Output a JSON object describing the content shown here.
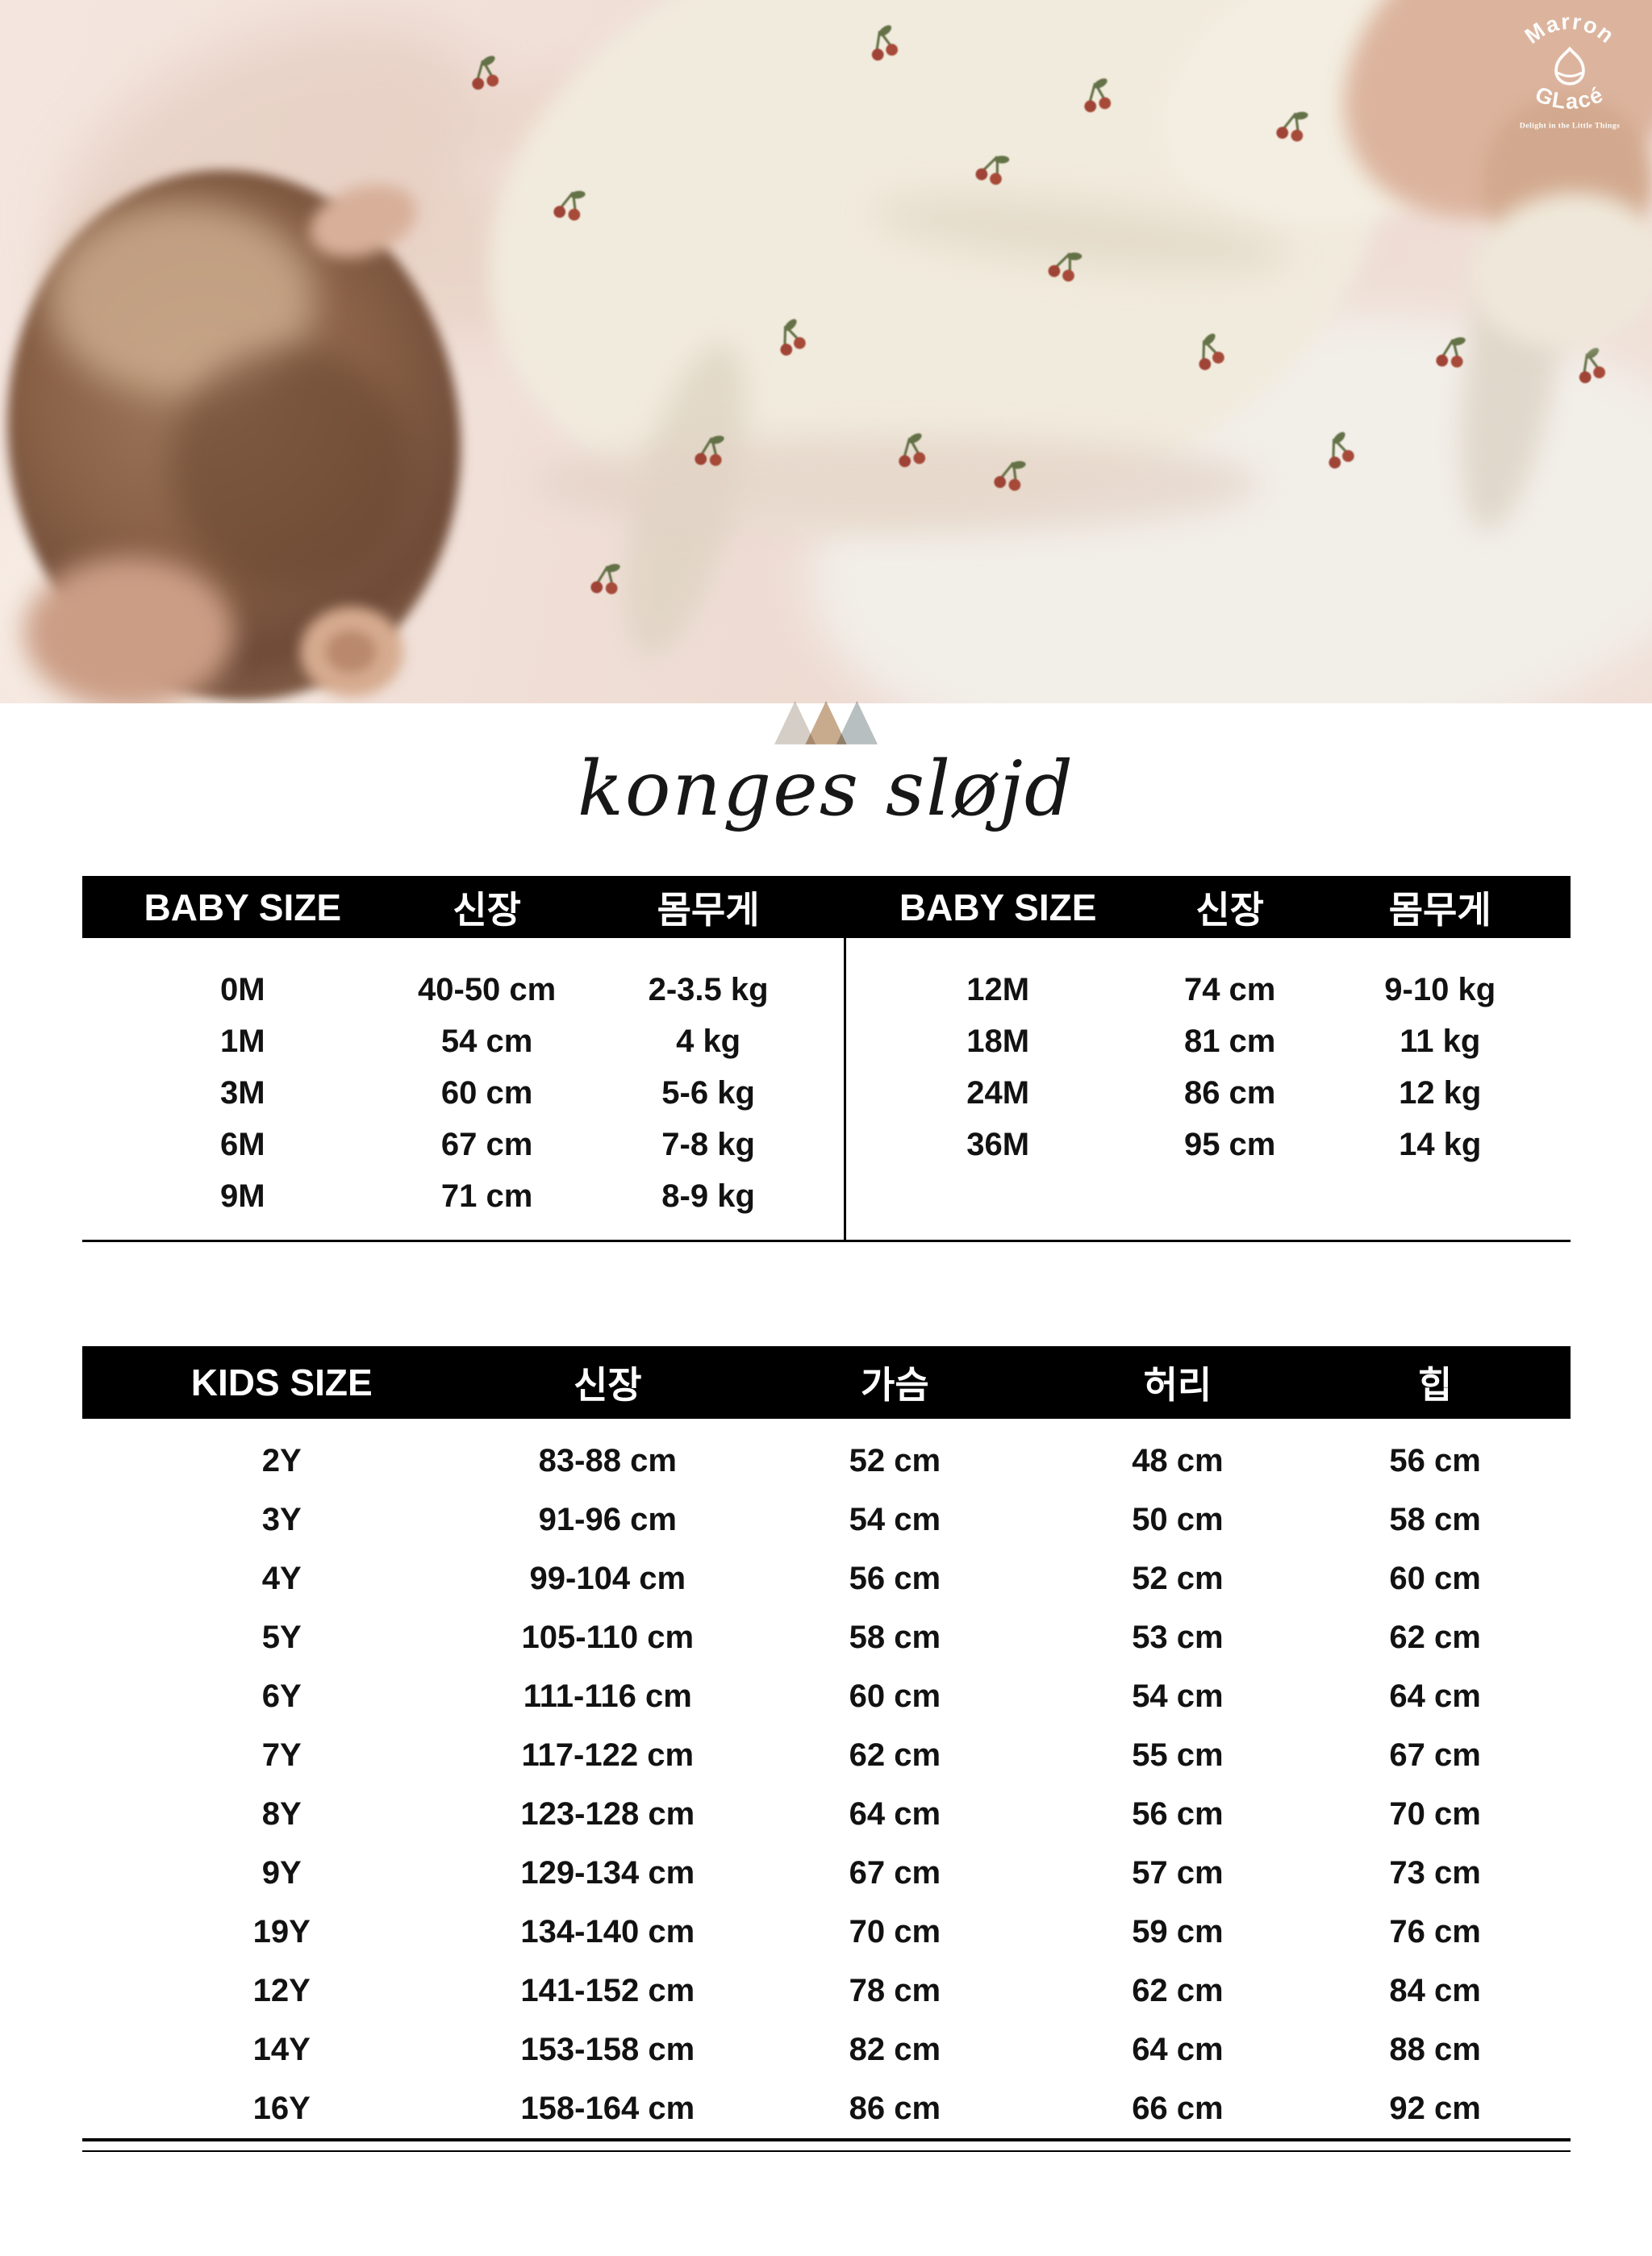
{
  "watermark": {
    "brand_top": "Marron",
    "brand_bottom": "GLacé",
    "tagline": "Delight in the Little Things"
  },
  "brand": {
    "name": "konges sløjd",
    "triangle_colors": [
      "#d5cec6",
      "#c8aa8d",
      "#b8bfc0"
    ]
  },
  "baby_table": {
    "headers": [
      "BABY SIZE",
      "신장",
      "몸무게"
    ],
    "left_rows": [
      [
        "0M",
        "40-50 cm",
        "2-3.5 kg"
      ],
      [
        "1M",
        "54 cm",
        "4 kg"
      ],
      [
        "3M",
        "60 cm",
        "5-6 kg"
      ],
      [
        "6M",
        "67 cm",
        "7-8 kg"
      ],
      [
        "9M",
        "71 cm",
        "8-9 kg"
      ]
    ],
    "right_rows": [
      [
        "12M",
        "74 cm",
        "9-10 kg"
      ],
      [
        "18M",
        "81 cm",
        "11 kg"
      ],
      [
        "24M",
        "86 cm",
        "12 kg"
      ],
      [
        "36M",
        "95 cm",
        "14 kg"
      ]
    ]
  },
  "kids_table": {
    "headers": [
      "KIDS SIZE",
      "신장",
      "가슴",
      "허리",
      "힙"
    ],
    "rows": [
      [
        "2Y",
        "83-88 cm",
        "52 cm",
        "48 cm",
        "56 cm"
      ],
      [
        "3Y",
        "91-96 cm",
        "54 cm",
        "50 cm",
        "58 cm"
      ],
      [
        "4Y",
        "99-104 cm",
        "56 cm",
        "52 cm",
        "60 cm"
      ],
      [
        "5Y",
        "105-110 cm",
        "58 cm",
        "53 cm",
        "62 cm"
      ],
      [
        "6Y",
        "111-116 cm",
        "60 cm",
        "54 cm",
        "64 cm"
      ],
      [
        "7Y",
        "117-122 cm",
        "62 cm",
        "55 cm",
        "67 cm"
      ],
      [
        "8Y",
        "123-128 cm",
        "64 cm",
        "56 cm",
        "70 cm"
      ],
      [
        "9Y",
        "129-134 cm",
        "67 cm",
        "57 cm",
        "73 cm"
      ],
      [
        "19Y",
        "134-140 cm",
        "70 cm",
        "59 cm",
        "76 cm"
      ],
      [
        "12Y",
        "141-152 cm",
        "78 cm",
        "62 cm",
        "84 cm"
      ],
      [
        "14Y",
        "153-158 cm",
        "82 cm",
        "64 cm",
        "88 cm"
      ],
      [
        "16Y",
        "158-164 cm",
        "86 cm",
        "66 cm",
        "92 cm"
      ]
    ]
  },
  "colors": {
    "table_header_bg": "#000000",
    "table_text": "#121212",
    "cherry_red": "#9a3a2c",
    "leaf_green": "#5c6b3f"
  }
}
